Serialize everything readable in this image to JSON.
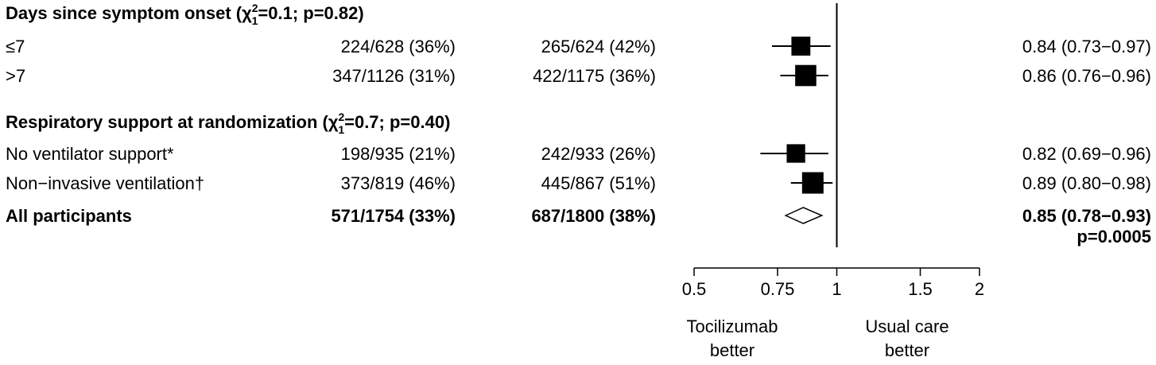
{
  "chart_data": {
    "type": "forest",
    "scale": "log",
    "xlim": [
      0.5,
      2
    ],
    "reference_value": 1,
    "ticks": [
      {
        "value": 0.5,
        "label": "0.5"
      },
      {
        "value": 0.75,
        "label": "0.75"
      },
      {
        "value": 1,
        "label": "1"
      },
      {
        "value": 1.5,
        "label": "1.5"
      },
      {
        "value": 2,
        "label": "2"
      }
    ],
    "favours_left": [
      "Tocilizumab",
      "better"
    ],
    "favours_right": [
      "Usual care",
      "better"
    ],
    "groups": [
      {
        "title": "Days since symptom onset",
        "het": {
          "open": "(",
          "chi": "χ",
          "sup": "2",
          "sub": "1",
          "stat": "=0.1; p=0.82)"
        },
        "rows": [
          {
            "label": "≤7",
            "toci": "224/628 (36%)",
            "usual": "265/624 (42%)",
            "est": 0.84,
            "lo": 0.73,
            "hi": 0.97,
            "ci_text": "0.84 (0.73−0.97)",
            "weight": 489
          },
          {
            "label": ">7",
            "toci": "347/1126 (31%)",
            "usual": "422/1175 (36%)",
            "est": 0.86,
            "lo": 0.76,
            "hi": 0.96,
            "ci_text": "0.86 (0.76−0.96)",
            "weight": 769
          }
        ]
      },
      {
        "title": "Respiratory support at randomization",
        "het": {
          "open": "(",
          "chi": "χ",
          "sup": "2",
          "sub": "1",
          "stat": "=0.7; p=0.40)"
        },
        "rows": [
          {
            "label": "No ventilator support*",
            "toci": "198/935 (21%)",
            "usual": "242/933 (26%)",
            "est": 0.82,
            "lo": 0.69,
            "hi": 0.96,
            "ci_text": "0.82 (0.69−0.96)",
            "weight": 440
          },
          {
            "label": "Non−invasive ventilation†",
            "toci": "373/819 (46%)",
            "usual": "445/867 (51%)",
            "est": 0.89,
            "lo": 0.8,
            "hi": 0.98,
            "ci_text": "0.89 (0.80−0.98)",
            "weight": 818
          }
        ]
      }
    ],
    "overall": {
      "label": "All participants",
      "toci": "571/1754 (33%)",
      "usual": "687/1800 (38%)",
      "est": 0.85,
      "lo": 0.78,
      "hi": 0.93,
      "ci_text": "0.85 (0.78−0.93)",
      "p_text": "p=0.0005"
    }
  }
}
